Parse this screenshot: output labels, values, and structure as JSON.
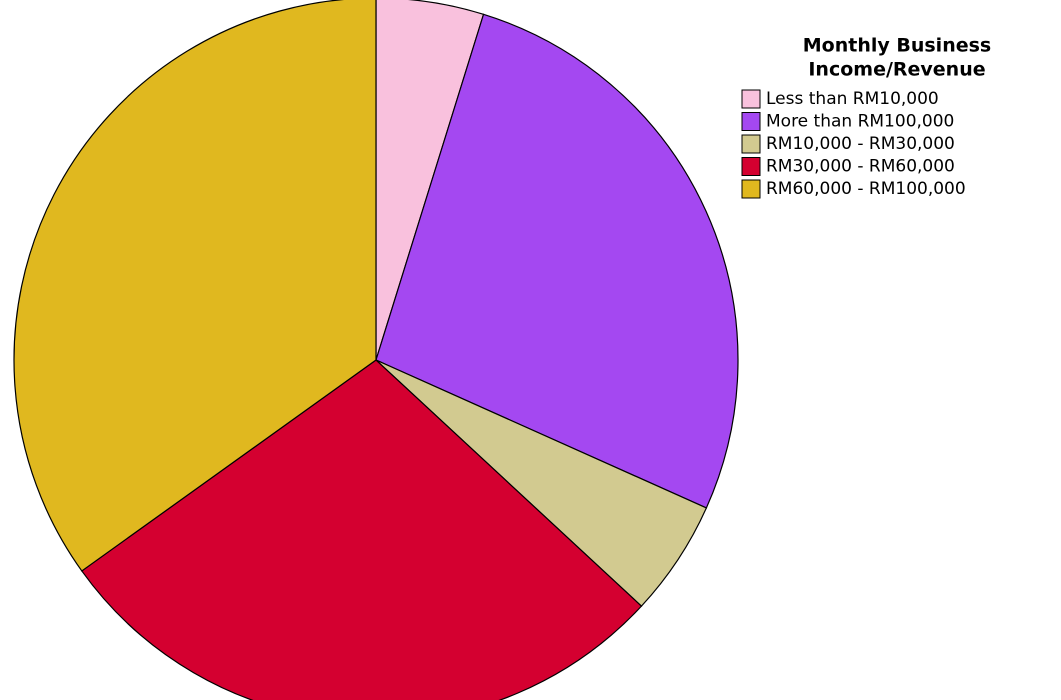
{
  "chart_data": {
    "type": "pie",
    "legend_title": [
      "Monthly Business",
      "Income/Revenue"
    ],
    "legend": "top-right",
    "categories": [
      "Less than RM10,000",
      "More than RM100,000",
      "RM10,000 - RM30,000",
      "RM30,000 - RM60,000",
      "RM60,000 - RM100,000"
    ],
    "values": [
      4.8,
      26.9,
      5.2,
      28.2,
      34.9
    ],
    "colors": [
      "#f9c1dd",
      "#a448f1",
      "#d2ca90",
      "#d40030",
      "#e0b81f"
    ]
  }
}
